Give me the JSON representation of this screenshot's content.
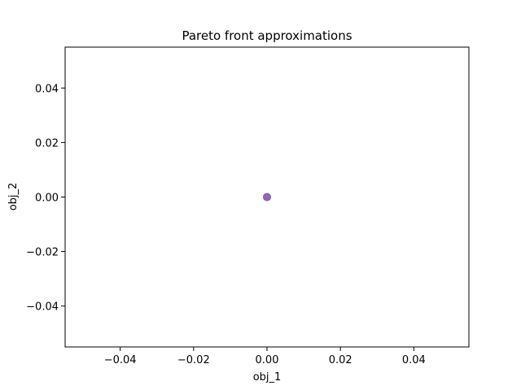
{
  "chart_data": {
    "type": "scatter",
    "title": "Pareto front approximations",
    "xlabel": "obj_1",
    "ylabel": "obj_2",
    "xlim": [
      -0.055,
      0.055
    ],
    "ylim": [
      -0.055,
      0.055
    ],
    "grid": false,
    "x_ticks": [
      -0.04,
      -0.02,
      0.0,
      0.02,
      0.04
    ],
    "x_tick_labels": [
      "−0.04",
      "−0.02",
      "0.00",
      "0.02",
      "0.04"
    ],
    "y_ticks": [
      -0.04,
      -0.02,
      0.0,
      0.02,
      0.04
    ],
    "y_tick_labels": [
      "−0.04",
      "−0.02",
      "0.00",
      "0.02",
      "0.04"
    ],
    "series": [
      {
        "points": [
          {
            "x": 0.0,
            "y": 0.0
          }
        ],
        "color": "#9467bd"
      }
    ]
  }
}
